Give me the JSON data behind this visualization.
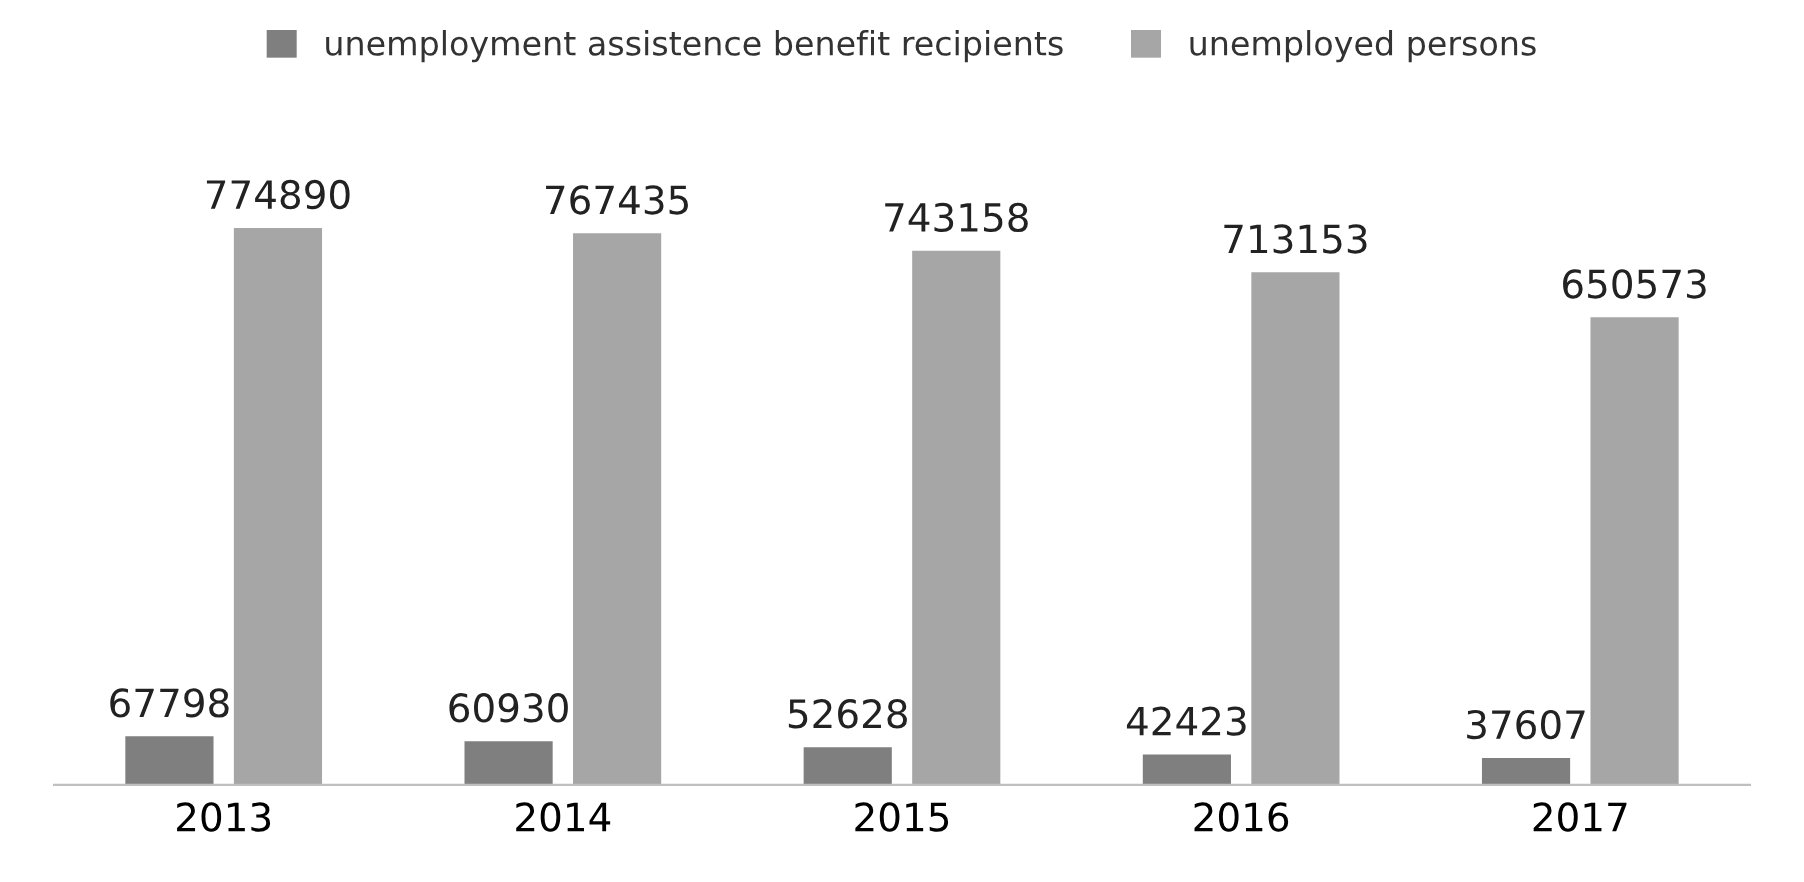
{
  "chart_data": {
    "type": "bar",
    "categories": [
      "2013",
      "2014",
      "2015",
      "2016",
      "2017"
    ],
    "series": [
      {
        "name": "unemployment assistence benefit recipients",
        "color": "#7f7f7f",
        "values": [
          67798,
          60930,
          52628,
          42423,
          37607
        ]
      },
      {
        "name": "unemployed persons",
        "color": "#a6a6a6",
        "values": [
          774890,
          767435,
          743158,
          713153,
          650573
        ]
      }
    ],
    "data_labels": true,
    "legend": "top",
    "grid": false
  }
}
